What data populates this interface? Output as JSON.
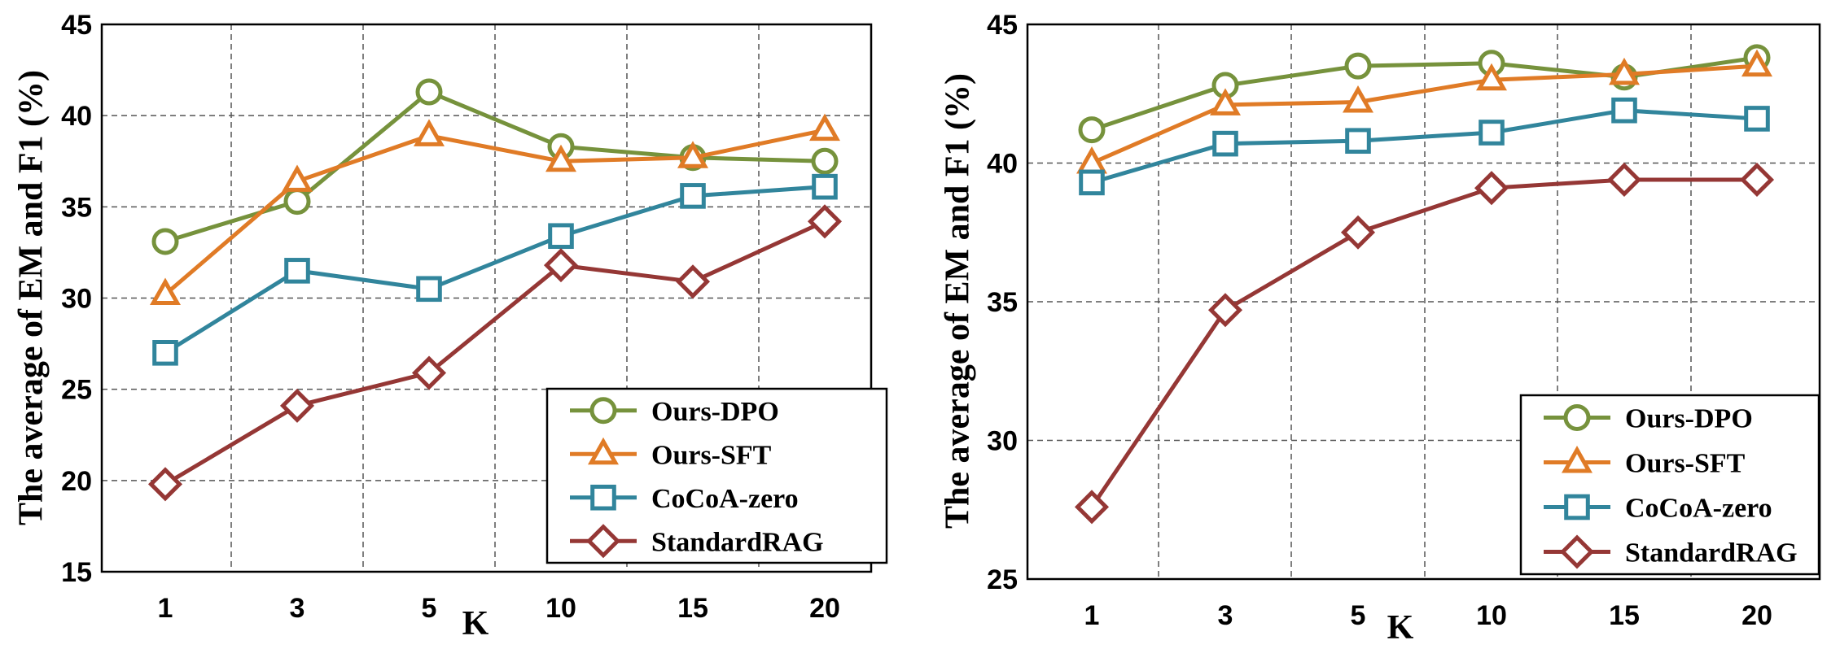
{
  "chart_data": [
    {
      "type": "line",
      "ylabel": "The average of EM and F1 (%)",
      "xlabel": "K",
      "categories": [
        "1",
        "3",
        "5",
        "10",
        "15",
        "20"
      ],
      "ylim": [
        15,
        45
      ],
      "yticks": [
        15,
        20,
        25,
        30,
        35,
        40,
        45
      ],
      "legend": "bottom-right",
      "grid": true,
      "series": [
        {
          "name": "Ours-DPO",
          "color": "#76923C",
          "marker": "circle",
          "values": [
            33.1,
            35.3,
            41.3,
            38.3,
            37.7,
            37.5
          ]
        },
        {
          "name": "Ours-SFT",
          "color": "#E07B26",
          "marker": "triangle",
          "values": [
            30.2,
            36.4,
            38.9,
            37.5,
            37.7,
            39.2
          ]
        },
        {
          "name": "CoCoA-zero",
          "color": "#31859C",
          "marker": "square",
          "values": [
            27.0,
            31.5,
            30.5,
            33.4,
            35.6,
            36.1
          ]
        },
        {
          "name": "StandardRAG",
          "color": "#953735",
          "marker": "diamond",
          "values": [
            19.8,
            24.1,
            25.9,
            31.8,
            30.9,
            34.2
          ]
        }
      ]
    },
    {
      "type": "line",
      "ylabel": "The average of EM and F1 (%)",
      "xlabel": "K",
      "categories": [
        "1",
        "3",
        "5",
        "10",
        "15",
        "20"
      ],
      "ylim": [
        25,
        45
      ],
      "yticks": [
        25,
        30,
        35,
        40,
        45
      ],
      "legend": "bottom-right",
      "grid": true,
      "series": [
        {
          "name": "Ours-DPO",
          "color": "#76923C",
          "marker": "circle",
          "values": [
            41.2,
            42.8,
            43.5,
            43.6,
            43.1,
            43.8
          ]
        },
        {
          "name": "Ours-SFT",
          "color": "#E07B26",
          "marker": "triangle",
          "values": [
            40.0,
            42.1,
            42.2,
            43.0,
            43.2,
            43.5
          ]
        },
        {
          "name": "CoCoA-zero",
          "color": "#31859C",
          "marker": "square",
          "values": [
            39.3,
            40.7,
            40.8,
            41.1,
            41.9,
            41.6
          ]
        },
        {
          "name": "StandardRAG",
          "color": "#953735",
          "marker": "diamond",
          "values": [
            27.6,
            34.7,
            37.5,
            39.1,
            39.4,
            39.4
          ]
        }
      ]
    }
  ]
}
